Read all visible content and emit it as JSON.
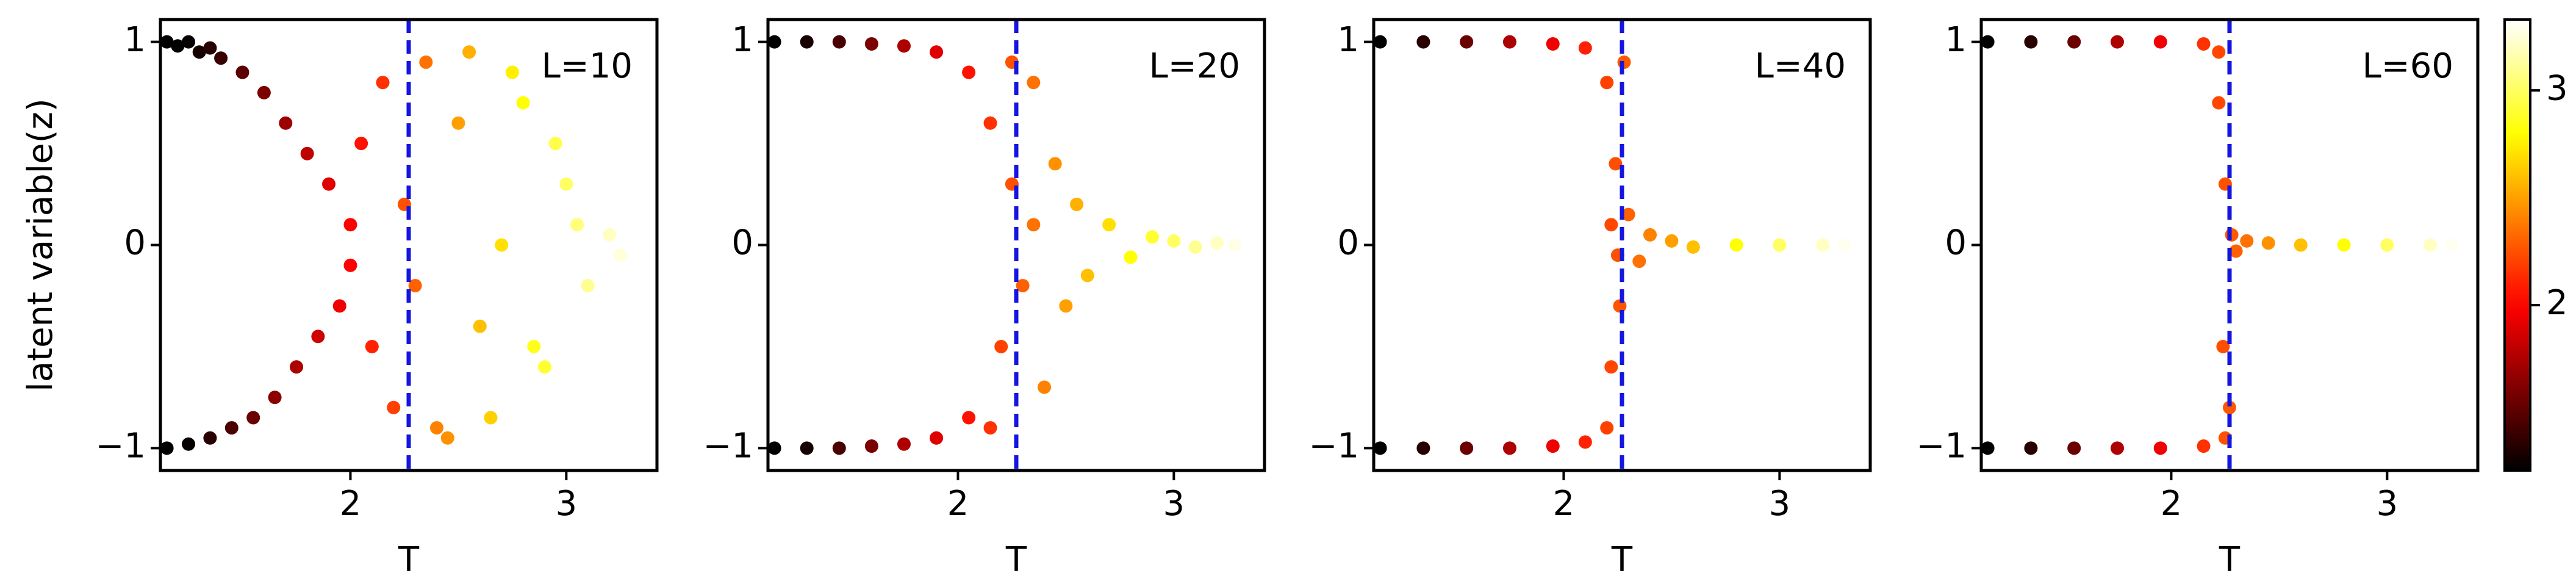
{
  "chart_data": [
    {
      "type": "scatter",
      "annotation": "L=10",
      "xlabel": "T",
      "ylabel": "latent variable(z)",
      "x": [
        1.15,
        1.2,
        1.25,
        1.3,
        1.35,
        1.4,
        1.5,
        1.6,
        1.7,
        1.8,
        1.9,
        1.15,
        1.25,
        1.35,
        1.45,
        1.55,
        1.65,
        1.75,
        1.85,
        1.95,
        2.0,
        2.0,
        2.05,
        2.1,
        2.15,
        2.2,
        2.25,
        2.3,
        2.35,
        2.4,
        2.5,
        2.6,
        2.7,
        2.8,
        2.9,
        3.0,
        3.1,
        3.2,
        2.45,
        2.55,
        2.65,
        2.75,
        2.85,
        2.95,
        3.05,
        3.25
      ],
      "y": [
        1,
        0.98,
        1,
        0.95,
        0.97,
        0.92,
        0.85,
        0.75,
        0.6,
        0.45,
        0.3,
        -1,
        -0.98,
        -0.95,
        -0.9,
        -0.85,
        -0.75,
        -0.6,
        -0.45,
        -0.3,
        0.1,
        -0.1,
        0.5,
        -0.5,
        0.8,
        -0.8,
        0.2,
        -0.2,
        0.9,
        -0.9,
        0.6,
        -0.4,
        0.0,
        0.7,
        -0.6,
        0.3,
        -0.2,
        0.05,
        -0.95,
        0.95,
        -0.85,
        0.85,
        -0.5,
        0.5,
        0.1,
        -0.05
      ],
      "xlim": [
        1.12,
        3.42
      ],
      "ylim": [
        -1.11,
        1.11
      ],
      "xticks": [
        2,
        3
      ],
      "yticks": [
        {
          "value": -1,
          "label": "−1"
        },
        0,
        1
      ],
      "vline": 2.27,
      "vline_color": "#1515e0"
    },
    {
      "type": "scatter",
      "annotation": "L=20",
      "xlabel": "T",
      "x": [
        1.15,
        1.3,
        1.45,
        1.6,
        1.75,
        1.9,
        2.05,
        1.15,
        1.3,
        1.45,
        1.6,
        1.75,
        1.9,
        2.05,
        2.15,
        2.2,
        2.25,
        2.3,
        2.35,
        2.4,
        2.15,
        2.25,
        2.35,
        2.45,
        2.5,
        2.55,
        2.6,
        2.7,
        2.8,
        2.9,
        3.0,
        3.1,
        3.2,
        3.28
      ],
      "y": [
        1,
        1,
        1,
        0.99,
        0.98,
        0.95,
        0.85,
        -1,
        -1,
        -1,
        -0.99,
        -0.98,
        -0.95,
        -0.85,
        0.6,
        -0.5,
        0.3,
        -0.2,
        0.8,
        -0.7,
        -0.9,
        0.9,
        0.1,
        0.4,
        -0.3,
        0.2,
        -0.15,
        0.1,
        -0.06,
        0.04,
        0.02,
        -0.01,
        0.01,
        0
      ],
      "xlim": [
        1.12,
        3.42
      ],
      "ylim": [
        -1.11,
        1.11
      ],
      "xticks": [
        2,
        3
      ],
      "yticks": [
        {
          "value": -1,
          "label": "−1"
        },
        0,
        1
      ],
      "vline": 2.27,
      "vline_color": "#1515e0"
    },
    {
      "type": "scatter",
      "annotation": "L=40",
      "xlabel": "T",
      "x": [
        1.15,
        1.35,
        1.55,
        1.75,
        1.95,
        2.1,
        1.15,
        1.35,
        1.55,
        1.75,
        1.95,
        2.1,
        2.2,
        2.22,
        2.24,
        2.26,
        2.28,
        2.2,
        2.22,
        2.25,
        2.3,
        2.35,
        2.4,
        2.5,
        2.6,
        2.8,
        3.0,
        3.2,
        3.3
      ],
      "y": [
        1,
        1,
        1,
        1,
        0.99,
        0.97,
        -1,
        -1,
        -1,
        -1,
        -0.99,
        -0.97,
        0.8,
        -0.6,
        0.4,
        -0.3,
        0.9,
        -0.9,
        0.1,
        -0.05,
        0.15,
        -0.08,
        0.05,
        0.02,
        -0.01,
        0,
        0,
        0,
        0
      ],
      "xlim": [
        1.12,
        3.42
      ],
      "ylim": [
        -1.11,
        1.11
      ],
      "xticks": [
        2,
        3
      ],
      "yticks": [
        {
          "value": -1,
          "label": "−1"
        },
        0,
        1
      ],
      "vline": 2.27,
      "vline_color": "#1515e0"
    },
    {
      "type": "scatter",
      "annotation": "L=60",
      "xlabel": "T",
      "x": [
        1.15,
        1.35,
        1.55,
        1.75,
        1.95,
        2.15,
        1.15,
        1.35,
        1.55,
        1.75,
        1.95,
        2.15,
        2.22,
        2.24,
        2.25,
        2.27,
        2.22,
        2.25,
        2.28,
        2.3,
        2.35,
        2.45,
        2.6,
        2.8,
        3.0,
        3.2,
        3.3
      ],
      "y": [
        1,
        1,
        1,
        1,
        1,
        0.99,
        -1,
        -1,
        -1,
        -1,
        -1,
        -0.99,
        0.7,
        -0.5,
        0.3,
        -0.8,
        0.95,
        -0.95,
        0.05,
        -0.03,
        0.02,
        0.01,
        0,
        0,
        0,
        0,
        0
      ],
      "xlim": [
        1.12,
        3.42
      ],
      "ylim": [
        -1.11,
        1.11
      ],
      "xticks": [
        2,
        3
      ],
      "yticks": [
        {
          "value": -1,
          "label": "−1"
        },
        0,
        1
      ],
      "vline": 2.27,
      "vline_color": "#1515e0"
    }
  ],
  "colorbar": {
    "colormap": "hot",
    "clim": [
      1.23,
      3.33
    ],
    "ticks": [
      2,
      3
    ]
  }
}
